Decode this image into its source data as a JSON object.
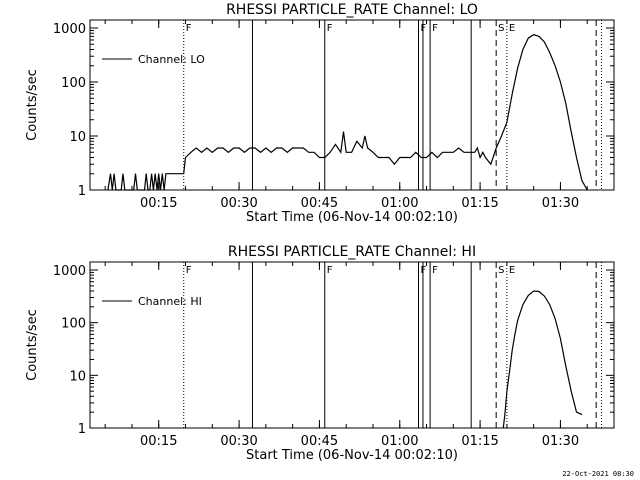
{
  "footer_timestamp": "22-Oct-2021 08:30",
  "chart_data": [
    {
      "type": "line",
      "title": "RHESSI PARTICLE_RATE Channel: LO",
      "xlabel": "Start Time (06-Nov-14 00:02:10)",
      "ylabel": "Counts/sec",
      "y_scale": "log",
      "xlim": [
        "00:02:10",
        "01:40:00"
      ],
      "ylim": [
        1,
        1000
      ],
      "x_ticks": [
        "00:15",
        "00:30",
        "00:45",
        "01:00",
        "01:15",
        "01:30"
      ],
      "y_ticks": [
        "1",
        "10",
        "100",
        "1000"
      ],
      "grid": false,
      "legend": {
        "placement": "top-left",
        "entries": [
          "Channel: LO"
        ]
      },
      "annotations": [
        {
          "time": "00:19:40",
          "style": "dotted",
          "label": "F"
        },
        {
          "time": "00:32:30",
          "style": "solid",
          "label": ""
        },
        {
          "time": "00:46:00",
          "style": "solid",
          "label": "F"
        },
        {
          "time": "01:03:30",
          "style": "solid",
          "label": "F"
        },
        {
          "time": "01:04:20",
          "style": "solid",
          "label": ""
        },
        {
          "time": "01:05:40",
          "style": "solid",
          "label": "F"
        },
        {
          "time": "01:13:20",
          "style": "solid",
          "label": ""
        },
        {
          "time": "01:18:00",
          "style": "dashed",
          "label": "S"
        },
        {
          "time": "01:20:00",
          "style": "dotted",
          "label": "E"
        },
        {
          "time": "01:36:40",
          "style": "dashed",
          "label": ""
        },
        {
          "time": "01:37:40",
          "style": "dotted",
          "label": ""
        }
      ],
      "series": [
        {
          "name": "Channel: LO",
          "segments": [
            {
              "x": [
                "00:05:30",
                "00:06:00",
                "00:06:20",
                "00:06:40",
                "00:07:00",
                "00:07:20",
                "00:07:40",
                "00:08:00",
                "00:08:20",
                "00:08:40",
                "00:09:00",
                "00:09:20",
                "00:09:40",
                "00:10:00",
                "00:10:20",
                "00:10:40",
                "00:11:00",
                "00:11:20",
                "00:11:40",
                "00:12:00",
                "00:12:20",
                "00:12:40",
                "00:13:00",
                "00:13:20",
                "00:13:40",
                "00:14:00",
                "00:14:20",
                "00:14:40",
                "00:15:00",
                "00:15:20",
                "00:15:40",
                "00:16:00",
                "00:16:20",
                "00:16:40",
                "00:17:00",
                "00:17:20",
                "00:17:40",
                "00:18:00",
                "00:18:20",
                "00:18:40",
                "00:19:00",
                "00:19:20",
                "00:19:40"
              ],
              "y": [
                1,
                2,
                1,
                2,
                1,
                1,
                1,
                1,
                2,
                1,
                1,
                1,
                1,
                1,
                1,
                2,
                1,
                1,
                1,
                1,
                1,
                2,
                1,
                1,
                2,
                1,
                2,
                1,
                2,
                1,
                2,
                1,
                2,
                2,
                2,
                2,
                2,
                2,
                2,
                2,
                2,
                2,
                2
              ]
            },
            {
              "x": [
                "00:19:40",
                "00:20:00",
                "00:21:00",
                "00:22:00",
                "00:23:00",
                "00:24:00",
                "00:25:00",
                "00:26:00",
                "00:27:00",
                "00:28:00",
                "00:29:00",
                "00:30:00",
                "00:31:00",
                "00:32:00",
                "00:33:00",
                "00:34:00",
                "00:35:00",
                "00:36:00",
                "00:37:00",
                "00:38:00",
                "00:39:00",
                "00:40:00",
                "00:41:00",
                "00:42:00",
                "00:43:00",
                "00:44:00",
                "00:45:00",
                "00:46:00",
                "00:47:00",
                "00:48:00",
                "00:49:00",
                "00:49:30",
                "00:50:00",
                "00:51:00",
                "00:52:00",
                "00:53:00",
                "00:53:30",
                "00:54:00",
                "00:55:00",
                "00:56:00",
                "00:57:00",
                "00:58:00",
                "00:59:00",
                "01:00:00",
                "01:01:00",
                "01:02:00",
                "01:03:00",
                "01:04:00",
                "01:05:00",
                "01:06:00",
                "01:07:00",
                "01:08:00",
                "01:09:00",
                "01:10:00",
                "01:11:00",
                "01:12:00",
                "01:13:00",
                "01:14:00",
                "01:14:30",
                "01:15:00",
                "01:15:30",
                "01:16:00",
                "01:17:00",
                "01:18:00",
                "01:19:00",
                "01:20:00"
              ],
              "y": [
                2,
                4,
                5,
                6,
                5,
                6,
                5,
                6,
                6,
                5,
                6,
                6,
                5,
                6,
                6,
                5,
                6,
                5,
                6,
                6,
                5,
                6,
                6,
                6,
                5,
                5,
                4,
                4,
                5,
                7,
                5,
                12,
                5,
                5,
                8,
                6,
                10,
                6,
                5,
                4,
                4,
                4,
                3,
                4,
                4,
                4,
                5,
                4,
                4,
                5,
                4,
                5,
                5,
                5,
                6,
                5,
                5,
                5,
                6,
                4,
                5,
                4,
                3,
                6,
                10,
                18
              ]
            },
            {
              "x": [
                "01:20:00",
                "01:21:00",
                "01:22:00",
                "01:23:00",
                "01:24:00",
                "01:25:00",
                "01:26:00",
                "01:27:00",
                "01:28:00",
                "01:29:00",
                "01:30:00",
                "01:31:00",
                "01:32:00",
                "01:33:00",
                "01:34:00",
                "01:35:00"
              ],
              "y": [
                18,
                60,
                180,
                400,
                650,
                750,
                700,
                550,
                350,
                200,
                100,
                40,
                12,
                4,
                1.5,
                1
              ]
            }
          ]
        }
      ]
    },
    {
      "type": "line",
      "title": "RHESSI PARTICLE_RATE Channel: HI",
      "xlabel": "Start Time (06-Nov-14 00:02:10)",
      "ylabel": "Counts/sec",
      "y_scale": "log",
      "xlim": [
        "00:02:10",
        "01:40:00"
      ],
      "ylim": [
        1,
        1000
      ],
      "x_ticks": [
        "00:15",
        "00:30",
        "00:45",
        "01:00",
        "01:15",
        "01:30"
      ],
      "y_ticks": [
        "1",
        "10",
        "100",
        "1000"
      ],
      "grid": false,
      "legend": {
        "placement": "top-left",
        "entries": [
          "Channel: HI"
        ]
      },
      "annotations": [
        {
          "time": "00:19:40",
          "style": "dotted",
          "label": "F"
        },
        {
          "time": "00:32:30",
          "style": "solid",
          "label": ""
        },
        {
          "time": "00:46:00",
          "style": "solid",
          "label": "F"
        },
        {
          "time": "01:03:30",
          "style": "solid",
          "label": "F"
        },
        {
          "time": "01:04:20",
          "style": "solid",
          "label": ""
        },
        {
          "time": "01:05:40",
          "style": "solid",
          "label": "F"
        },
        {
          "time": "01:13:20",
          "style": "solid",
          "label": ""
        },
        {
          "time": "01:18:00",
          "style": "dashed",
          "label": "S"
        },
        {
          "time": "01:20:00",
          "style": "dotted",
          "label": "E"
        },
        {
          "time": "01:36:40",
          "style": "dashed",
          "label": ""
        },
        {
          "time": "01:37:40",
          "style": "dotted",
          "label": ""
        }
      ],
      "series": [
        {
          "name": "Channel: HI",
          "segments": [
            {
              "x": [
                "01:19:20",
                "01:19:40",
                "01:20:00",
                "01:20:30",
                "01:21:00",
                "01:21:30",
                "01:22:00",
                "01:23:00",
                "01:24:00",
                "01:25:00",
                "01:26:00",
                "01:27:00",
                "01:28:00",
                "01:29:00",
                "01:30:00",
                "01:31:00",
                "01:32:00",
                "01:33:00",
                "01:34:00"
              ],
              "y": [
                1,
                2,
                5,
                12,
                30,
                60,
                110,
                220,
                330,
                400,
                390,
                320,
                220,
                120,
                50,
                15,
                5,
                2,
                1.8
              ]
            }
          ]
        }
      ]
    }
  ]
}
